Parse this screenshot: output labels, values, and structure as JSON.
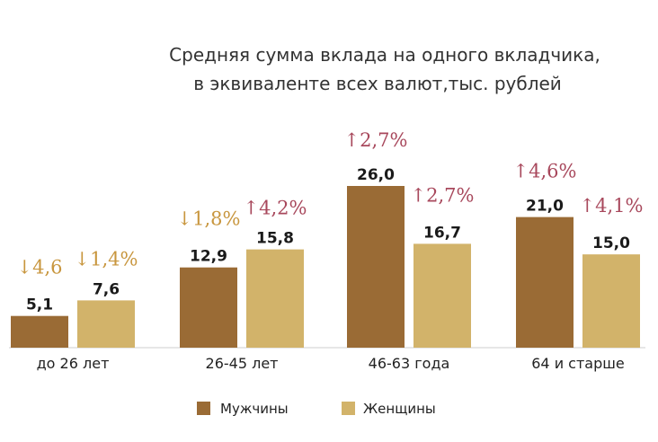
{
  "chart_data": {
    "type": "bar",
    "title_lines": [
      "Средняя сумма вклада на одного вкладчика,",
      "в эквиваленте всех валют,тыс. рублей"
    ],
    "categories": [
      "до 26 лет",
      "26-45 лет",
      "46-63 года",
      "64 и старше"
    ],
    "series": [
      {
        "name": "Мужчины",
        "values": [
          5.1,
          12.9,
          26.0,
          21.0
        ],
        "value_labels": [
          "5,1",
          "12,9",
          "26,0",
          "21,0"
        ],
        "change_labels": [
          "↓4,6",
          "↓1,8%",
          "↑2,7%",
          "↑4,6%"
        ],
        "color": "#9a6b35"
      },
      {
        "name": "Женщины",
        "values": [
          7.6,
          15.8,
          16.7,
          15.0
        ],
        "value_labels": [
          "7,6",
          "15,8",
          "16,7",
          "15,0"
        ],
        "change_labels": [
          "↓1,4%",
          "↑4,2%",
          "↑2,7%",
          "↑4,1%"
        ],
        "color": "#d2b36a"
      }
    ],
    "change_colors": {
      "down": "#c8963e",
      "up": "#a8485c"
    },
    "axis_color": "#cfcfcf",
    "ylim": [
      0,
      26
    ],
    "legend_position": "bottom"
  }
}
